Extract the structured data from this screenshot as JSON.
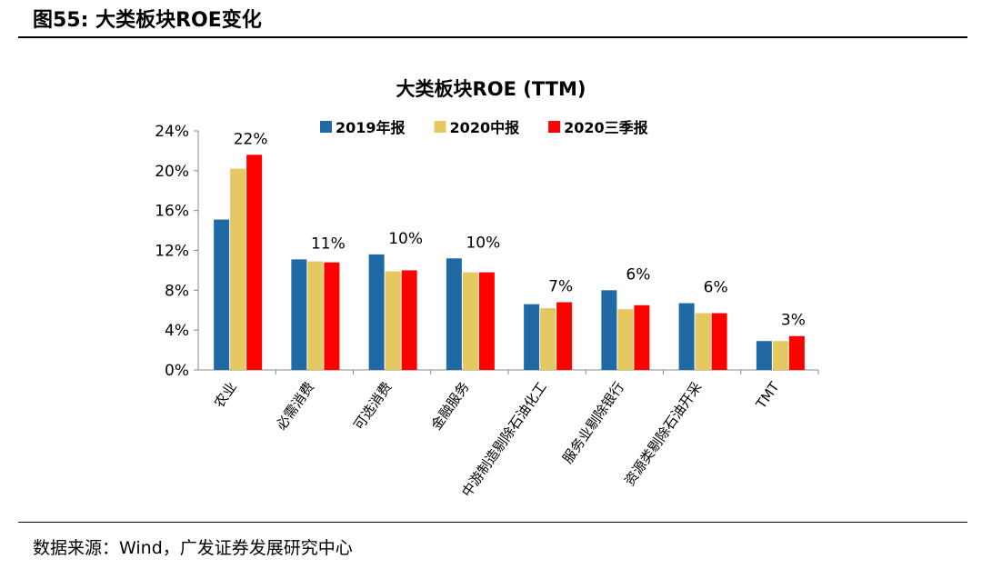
{
  "header": {
    "title": "图55:  大类板块ROE变化"
  },
  "source": "数据来源：Wind，广发证券发展研究中心",
  "chart_data": {
    "type": "bar",
    "title": "大类板块ROE (TTM)",
    "categories": [
      "农业",
      "必需消费",
      "可选消费",
      "金融服务",
      "中游制造剔除石油化工",
      "服务业剔除银行",
      "资源类剔除石油开采",
      "TMT"
    ],
    "series": [
      {
        "name": "2019年报",
        "color": "#1f6aa5",
        "values": [
          15.1,
          11.1,
          11.6,
          11.2,
          6.6,
          8.0,
          6.7,
          2.9
        ]
      },
      {
        "name": "2020中报",
        "color": "#e6c861",
        "values": [
          20.2,
          10.9,
          9.9,
          9.8,
          6.2,
          6.1,
          5.7,
          2.9
        ]
      },
      {
        "name": "2020三季报",
        "color": "#ff0000",
        "values": [
          21.6,
          10.8,
          10.0,
          9.8,
          6.8,
          6.5,
          5.7,
          3.4
        ]
      }
    ],
    "data_labels": [
      "22%",
      "11%",
      "10%",
      "10%",
      "7%",
      "6%",
      "6%",
      "3%"
    ],
    "yticks": [
      "0%",
      "4%",
      "8%",
      "12%",
      "16%",
      "20%",
      "24%"
    ],
    "ylim": [
      0,
      24
    ],
    "grid": false,
    "legend": "top"
  }
}
